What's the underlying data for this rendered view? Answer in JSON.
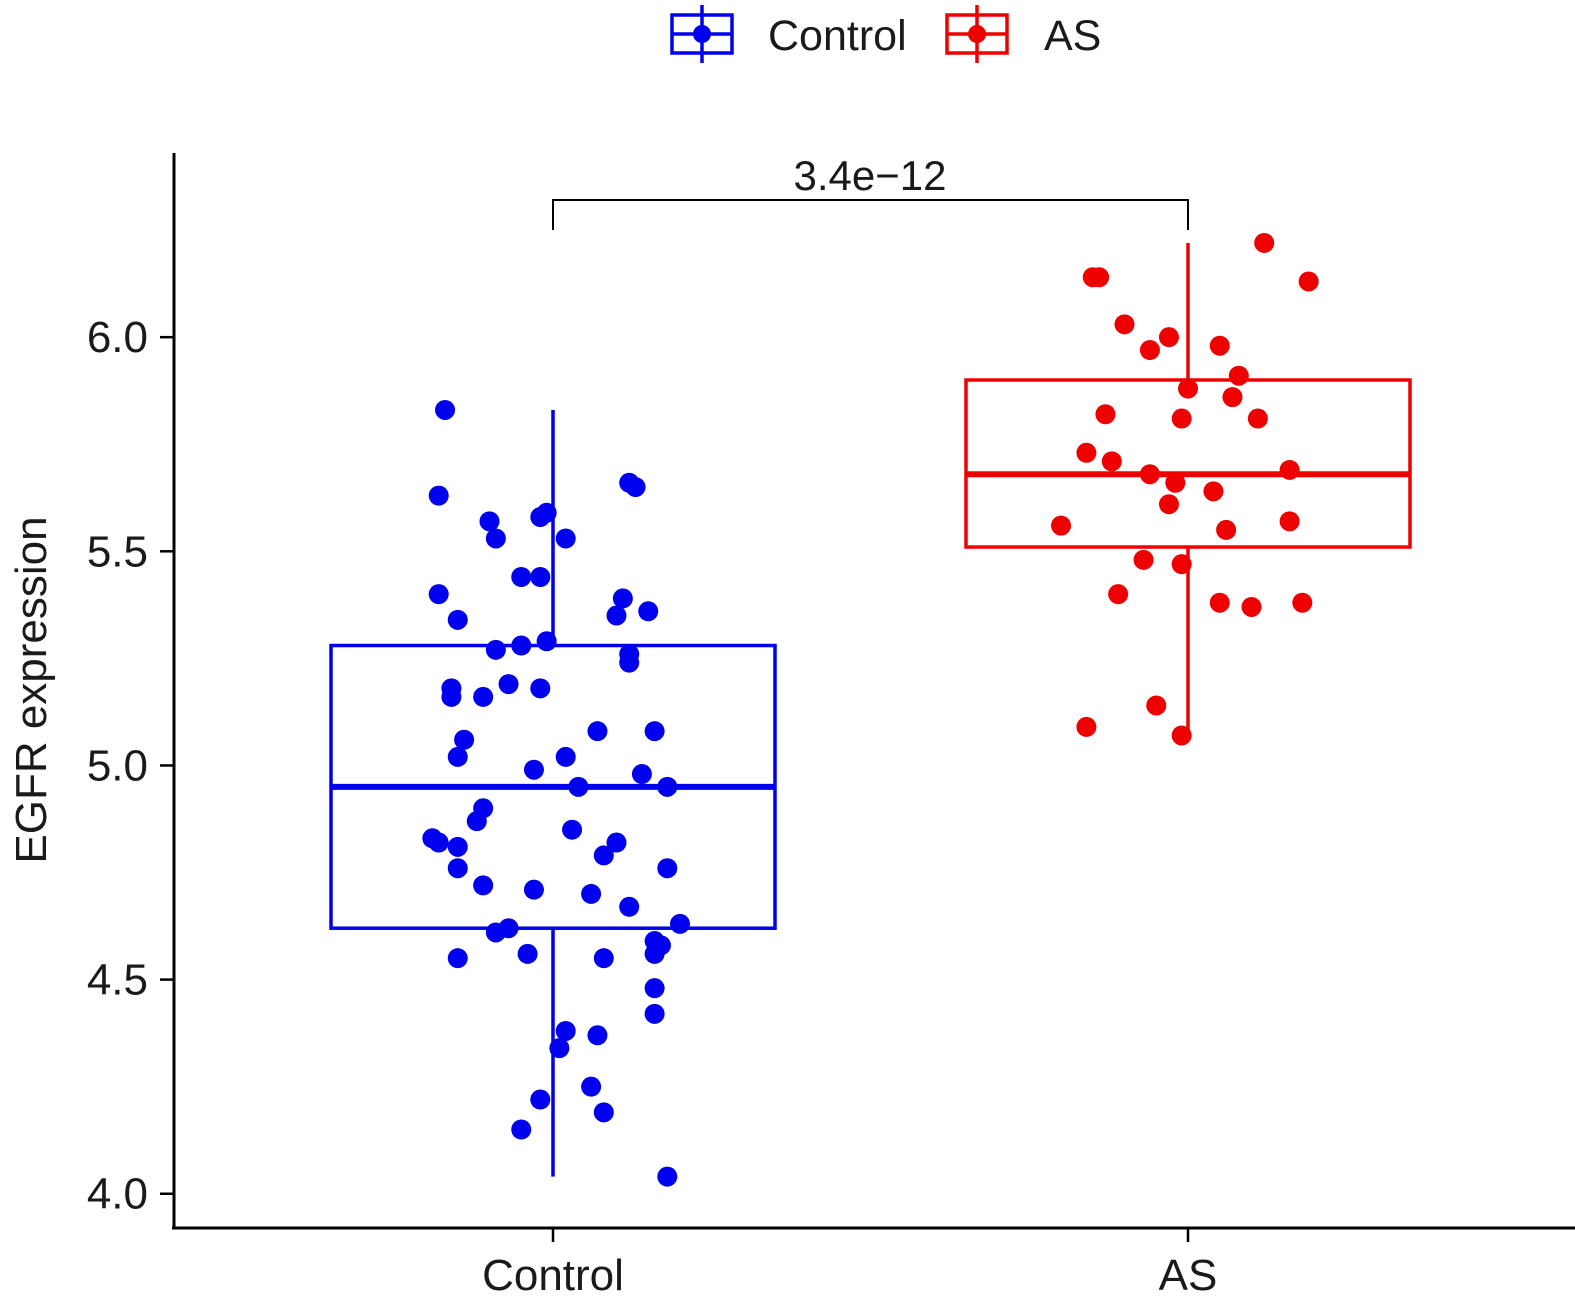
{
  "chart_data": {
    "type": "box",
    "ylabel": "EGFR expression",
    "xlabel": "",
    "ylim": [
      3.92,
      6.43
    ],
    "yticks": [
      "4.0",
      "4.5",
      "5.0",
      "5.5",
      "6.0"
    ],
    "legend_position": "top",
    "categories": [
      "Control",
      "AS"
    ],
    "annotation": "3.4e−12",
    "series": [
      {
        "name": "Control",
        "color": "#0000ee",
        "box": {
          "q1": 4.62,
          "median": 4.95,
          "q3": 5.28,
          "whisker_low": 4.04,
          "whisker_high": 5.83
        },
        "points": [
          {
            "dx": -0.17,
            "y": 5.83
          },
          {
            "dx": -0.18,
            "y": 5.63
          },
          {
            "dx": 0.12,
            "y": 5.66
          },
          {
            "dx": 0.13,
            "y": 5.65
          },
          {
            "dx": -0.1,
            "y": 5.57
          },
          {
            "dx": -0.09,
            "y": 5.53
          },
          {
            "dx": -0.02,
            "y": 5.58
          },
          {
            "dx": -0.01,
            "y": 5.59
          },
          {
            "dx": 0.02,
            "y": 5.53
          },
          {
            "dx": -0.05,
            "y": 5.44
          },
          {
            "dx": -0.02,
            "y": 5.44
          },
          {
            "dx": -0.18,
            "y": 5.4
          },
          {
            "dx": -0.15,
            "y": 5.34
          },
          {
            "dx": 0.11,
            "y": 5.39
          },
          {
            "dx": 0.1,
            "y": 5.35
          },
          {
            "dx": 0.15,
            "y": 5.36
          },
          {
            "dx": -0.05,
            "y": 5.28
          },
          {
            "dx": -0.01,
            "y": 5.29
          },
          {
            "dx": -0.09,
            "y": 5.27
          },
          {
            "dx": 0.12,
            "y": 5.26
          },
          {
            "dx": 0.12,
            "y": 5.24
          },
          {
            "dx": -0.16,
            "y": 5.18
          },
          {
            "dx": -0.16,
            "y": 5.16
          },
          {
            "dx": -0.11,
            "y": 5.16
          },
          {
            "dx": -0.07,
            "y": 5.19
          },
          {
            "dx": -0.02,
            "y": 5.18
          },
          {
            "dx": 0.07,
            "y": 5.08
          },
          {
            "dx": 0.16,
            "y": 5.08
          },
          {
            "dx": -0.14,
            "y": 5.06
          },
          {
            "dx": -0.15,
            "y": 5.02
          },
          {
            "dx": 0.02,
            "y": 5.02
          },
          {
            "dx": -0.03,
            "y": 4.99
          },
          {
            "dx": 0.14,
            "y": 4.98
          },
          {
            "dx": 0.18,
            "y": 4.95
          },
          {
            "dx": 0.04,
            "y": 4.95
          },
          {
            "dx": -0.11,
            "y": 4.9
          },
          {
            "dx": -0.12,
            "y": 4.87
          },
          {
            "dx": -0.19,
            "y": 4.83
          },
          {
            "dx": -0.18,
            "y": 4.82
          },
          {
            "dx": -0.15,
            "y": 4.81
          },
          {
            "dx": 0.03,
            "y": 4.85
          },
          {
            "dx": 0.1,
            "y": 4.82
          },
          {
            "dx": 0.08,
            "y": 4.79
          },
          {
            "dx": -0.15,
            "y": 4.76
          },
          {
            "dx": 0.18,
            "y": 4.76
          },
          {
            "dx": -0.11,
            "y": 4.72
          },
          {
            "dx": -0.03,
            "y": 4.71
          },
          {
            "dx": 0.06,
            "y": 4.7
          },
          {
            "dx": 0.12,
            "y": 4.67
          },
          {
            "dx": -0.09,
            "y": 4.61
          },
          {
            "dx": -0.07,
            "y": 4.62
          },
          {
            "dx": 0.2,
            "y": 4.63
          },
          {
            "dx": 0.16,
            "y": 4.59
          },
          {
            "dx": 0.17,
            "y": 4.58
          },
          {
            "dx": -0.15,
            "y": 4.55
          },
          {
            "dx": -0.04,
            "y": 4.56
          },
          {
            "dx": 0.08,
            "y": 4.55
          },
          {
            "dx": 0.16,
            "y": 4.56
          },
          {
            "dx": 0.16,
            "y": 4.48
          },
          {
            "dx": 0.16,
            "y": 4.42
          },
          {
            "dx": 0.02,
            "y": 4.38
          },
          {
            "dx": 0.01,
            "y": 4.34
          },
          {
            "dx": 0.07,
            "y": 4.37
          },
          {
            "dx": 0.06,
            "y": 4.25
          },
          {
            "dx": -0.02,
            "y": 4.22
          },
          {
            "dx": 0.08,
            "y": 4.19
          },
          {
            "dx": -0.05,
            "y": 4.15
          },
          {
            "dx": 0.18,
            "y": 4.04
          }
        ]
      },
      {
        "name": "AS",
        "color": "#ee0000",
        "box": {
          "q1": 5.51,
          "median": 5.68,
          "q3": 5.9,
          "whisker_low": 5.07,
          "whisker_high": 6.22
        },
        "points": [
          {
            "dx": 0.12,
            "y": 6.22
          },
          {
            "dx": -0.15,
            "y": 6.14
          },
          {
            "dx": -0.14,
            "y": 6.14
          },
          {
            "dx": 0.19,
            "y": 6.13
          },
          {
            "dx": -0.1,
            "y": 6.03
          },
          {
            "dx": -0.03,
            "y": 6.0
          },
          {
            "dx": -0.06,
            "y": 5.97
          },
          {
            "dx": 0.05,
            "y": 5.98
          },
          {
            "dx": 0.08,
            "y": 5.91
          },
          {
            "dx": 0.0,
            "y": 5.88
          },
          {
            "dx": 0.07,
            "y": 5.86
          },
          {
            "dx": -0.13,
            "y": 5.82
          },
          {
            "dx": -0.01,
            "y": 5.81
          },
          {
            "dx": 0.11,
            "y": 5.81
          },
          {
            "dx": -0.16,
            "y": 5.73
          },
          {
            "dx": -0.12,
            "y": 5.71
          },
          {
            "dx": -0.06,
            "y": 5.68
          },
          {
            "dx": -0.02,
            "y": 5.66
          },
          {
            "dx": 0.16,
            "y": 5.69
          },
          {
            "dx": 0.04,
            "y": 5.64
          },
          {
            "dx": -0.03,
            "y": 5.61
          },
          {
            "dx": -0.2,
            "y": 5.56
          },
          {
            "dx": 0.06,
            "y": 5.55
          },
          {
            "dx": 0.16,
            "y": 5.57
          },
          {
            "dx": -0.07,
            "y": 5.48
          },
          {
            "dx": -0.01,
            "y": 5.47
          },
          {
            "dx": -0.11,
            "y": 5.4
          },
          {
            "dx": 0.05,
            "y": 5.38
          },
          {
            "dx": 0.1,
            "y": 5.37
          },
          {
            "dx": 0.18,
            "y": 5.38
          },
          {
            "dx": -0.05,
            "y": 5.14
          },
          {
            "dx": -0.16,
            "y": 5.09
          },
          {
            "dx": -0.01,
            "y": 5.07
          }
        ]
      }
    ]
  }
}
